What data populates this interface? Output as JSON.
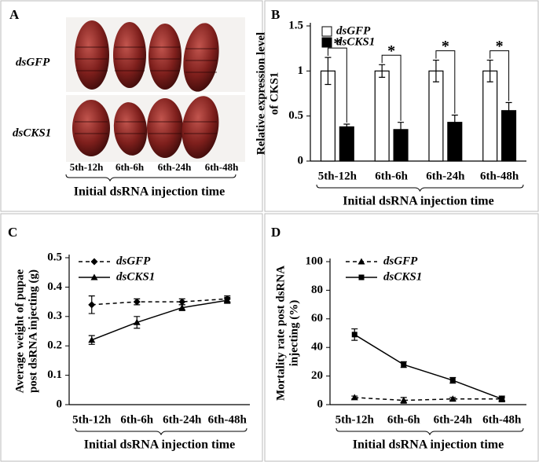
{
  "panel_a": {
    "label": "A",
    "rows": [
      "dsGFP",
      "dsCKS1"
    ],
    "categories": [
      "5th-12h",
      "6th-6h",
      "6th-24h",
      "6th-48h"
    ],
    "xlabel": "Initial dsRNA injection time"
  },
  "chart_data": [
    {
      "type": "bar",
      "label": "B",
      "ylabel": [
        "Relative expression level",
        "of CKS1"
      ],
      "xlabel": "Initial dsRNA injection time",
      "categories": [
        "5th-12h",
        "6th-6h",
        "6th-24h",
        "6th-48h"
      ],
      "series": [
        {
          "name": "dsGFP",
          "color": "#ffffff",
          "values": [
            1,
            1,
            1,
            1
          ],
          "errors": [
            0.15,
            0.07,
            0.12,
            0.12
          ]
        },
        {
          "name": "dsCKS1",
          "color": "#000000",
          "values": [
            0.38,
            0.35,
            0.43,
            0.56
          ],
          "errors": [
            0.03,
            0.08,
            0.08,
            0.09
          ]
        }
      ],
      "annotations": [
        "*",
        "*",
        "*",
        "*"
      ],
      "ylim": [
        0,
        1.5
      ],
      "yticks": [
        0,
        0.5,
        1,
        1.5
      ]
    },
    {
      "type": "line",
      "label": "C",
      "ylabel": [
        "Average weight of pupae",
        "post dsRNA injecting (g)"
      ],
      "xlabel": "Initial dsRNA injection time",
      "categories": [
        "5th-12h",
        "6th-6h",
        "6th-24h",
        "6th-48h"
      ],
      "series": [
        {
          "name": "dsGFP",
          "color": "#000000",
          "marker": "diamond",
          "dashed": true,
          "values": [
            0.34,
            0.35,
            0.35,
            0.36
          ],
          "errors": [
            0.03,
            0.01,
            0.01,
            0.01
          ]
        },
        {
          "name": "dsCKS1",
          "color": "#000000",
          "marker": "triangle",
          "dashed": false,
          "values": [
            0.22,
            0.28,
            0.33,
            0.355
          ],
          "errors": [
            0.015,
            0.02,
            0.01,
            0.01
          ]
        }
      ],
      "ylim": [
        0,
        0.5
      ],
      "yticks": [
        0,
        0.1,
        0.2,
        0.3,
        0.4,
        0.5
      ]
    },
    {
      "type": "line",
      "label": "D",
      "ylabel": [
        "Mortality rate post dsRNA",
        "injecting (%)"
      ],
      "xlabel": "Initial dsRNA injection time",
      "categories": [
        "5th-12h",
        "6th-6h",
        "6th-24h",
        "6th-48h"
      ],
      "series": [
        {
          "name": "dsGFP",
          "color": "#000000",
          "marker": "triangle",
          "dashed": true,
          "values": [
            5,
            3,
            4,
            4
          ],
          "errors": [
            1,
            2,
            1,
            1
          ]
        },
        {
          "name": "dsCKS1",
          "color": "#000000",
          "marker": "square",
          "dashed": false,
          "values": [
            49,
            28,
            17,
            4
          ],
          "errors": [
            4,
            2,
            2,
            2
          ]
        }
      ],
      "ylim": [
        0,
        100
      ],
      "yticks": [
        0,
        20,
        40,
        60,
        80,
        100
      ]
    }
  ]
}
